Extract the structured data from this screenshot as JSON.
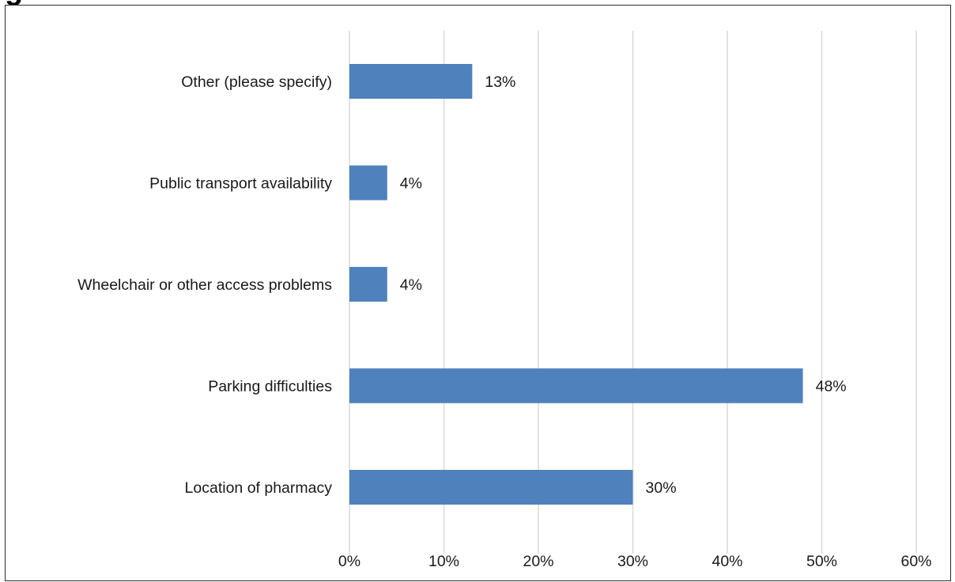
{
  "chart_data": {
    "type": "bar",
    "orientation": "horizontal",
    "title": "",
    "xlabel": "",
    "ylabel": "",
    "categories": [
      "Other (please specify)",
      "Public transport availability",
      "Wheelchair or other access problems",
      "Parking difficulties",
      "Location of pharmacy"
    ],
    "values": [
      13,
      4,
      4,
      48,
      30
    ],
    "value_labels": [
      "13%",
      "4%",
      "4%",
      "48%",
      "30%"
    ],
    "xlim": [
      0,
      60
    ],
    "x_ticks": [
      0,
      10,
      20,
      30,
      40,
      50,
      60
    ],
    "x_tick_labels": [
      "0%",
      "10%",
      "20%",
      "30%",
      "40%",
      "50%",
      "60%"
    ],
    "grid": "vertical",
    "legend": "none",
    "bar_color": "#4f81bd",
    "grid_color": "#d9d9d9"
  }
}
